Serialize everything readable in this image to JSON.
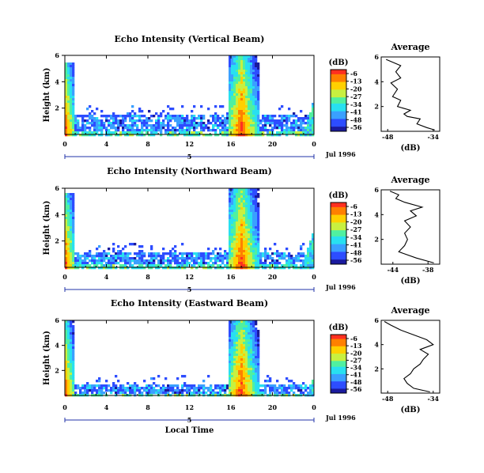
{
  "figure": {
    "xlabel": "Local Time",
    "date_label": "Jul 1996",
    "colorbar_unit": "(dB)",
    "colorbar_ticks": [
      "-6",
      "-13",
      "-20",
      "-27",
      "-34",
      "-41",
      "-48",
      "-56"
    ],
    "avg_xlabel": "(dB)"
  },
  "chart_data": [
    {
      "type": "heatmap",
      "title": "Echo Intensity (Vertical Beam)",
      "ylabel": "Height (km)",
      "x_ticks": [
        "0",
        "4",
        "8",
        "12",
        "16",
        "20",
        "0"
      ],
      "y_ticks": [
        "6",
        "4",
        "2"
      ],
      "day_label": "5",
      "xlim": [
        0,
        24
      ],
      "ylim": [
        0,
        6
      ],
      "value_range_db": [
        -56,
        -6
      ],
      "colorscale": [
        "#1a1a9e",
        "#2d4dff",
        "#3aa0ff",
        "#28e0f0",
        "#50f0a0",
        "#c8f040",
        "#ffd000",
        "#ff8000",
        "#ff3020"
      ],
      "features": {
        "morning_plume": {
          "start_hr": 0.0,
          "end_hr": 0.8,
          "top_km": 5.6
        },
        "afternoon_plume": {
          "start_hr": 15.6,
          "end_hr": 18.6,
          "top_km": 6.0
        },
        "boundary_layer_top_km": 1.5,
        "boundary_layer_span_hr": [
          0.8,
          23.8
        ],
        "late_night_rise": {
          "start_hr": 22.8,
          "end_hr": 24.0,
          "top_km": 3.0
        }
      }
    },
    {
      "type": "heatmap",
      "title": "Echo Intensity (Northward Beam)",
      "ylabel": "Height (km)",
      "x_ticks": [
        "0",
        "4",
        "8",
        "12",
        "16",
        "20",
        "0"
      ],
      "y_ticks": [
        "6",
        "4",
        "2"
      ],
      "day_label": "5",
      "xlim": [
        0,
        24
      ],
      "ylim": [
        0,
        6
      ],
      "value_range_db": [
        -56,
        -6
      ],
      "colorscale": [
        "#1a1a9e",
        "#2d4dff",
        "#3aa0ff",
        "#28e0f0",
        "#50f0a0",
        "#c8f040",
        "#ffd000",
        "#ff8000",
        "#ff3020"
      ],
      "features": {
        "morning_plume": {
          "start_hr": 0.0,
          "end_hr": 0.8,
          "top_km": 5.8
        },
        "afternoon_plume": {
          "start_hr": 15.6,
          "end_hr": 18.6,
          "top_km": 6.0
        },
        "boundary_layer_top_km": 1.2,
        "boundary_layer_span_hr": [
          0.8,
          23.8
        ],
        "late_night_rise": {
          "start_hr": 22.6,
          "end_hr": 24.0,
          "top_km": 3.2
        }
      }
    },
    {
      "type": "heatmap",
      "title": "Echo Intensity (Eastward Beam)",
      "ylabel": "Height (km)",
      "x_ticks": [
        "0",
        "4",
        "8",
        "12",
        "16",
        "20",
        "0"
      ],
      "y_ticks": [
        "6",
        "4",
        "2"
      ],
      "day_label": "5",
      "xlim": [
        0,
        24
      ],
      "ylim": [
        0,
        6
      ],
      "value_range_db": [
        -56,
        -6
      ],
      "colorscale": [
        "#1a1a9e",
        "#2d4dff",
        "#3aa0ff",
        "#28e0f0",
        "#50f0a0",
        "#c8f040",
        "#ffd000",
        "#ff8000",
        "#ff3020"
      ],
      "features": {
        "morning_plume": {
          "start_hr": 0.0,
          "end_hr": 0.8,
          "top_km": 6.0
        },
        "afternoon_plume": {
          "start_hr": 15.6,
          "end_hr": 18.6,
          "top_km": 6.0
        },
        "boundary_layer_top_km": 1.0,
        "boundary_layer_span_hr": [
          0.8,
          23.8
        ],
        "late_night_rise": {
          "start_hr": 23.2,
          "end_hr": 24.0,
          "top_km": 1.8
        }
      }
    },
    {
      "type": "line",
      "title": "Average",
      "xlabel": "(dB)",
      "x_ticks": [
        "-48",
        "-34"
      ],
      "y_ticks": [
        "6",
        "4",
        "2"
      ],
      "xlim": [
        -50,
        -32
      ],
      "ylim": [
        0,
        6
      ],
      "x": [
        -33.5,
        -36,
        -39,
        -38,
        -42,
        -43,
        -41,
        -45,
        -44,
        -46.5,
        -45,
        -47,
        -44,
        -45.5,
        -44,
        -48.5
      ],
      "y": [
        0.1,
        0.3,
        0.6,
        1.0,
        1.2,
        1.4,
        1.7,
        2.0,
        2.5,
        2.8,
        3.4,
        3.9,
        4.3,
        4.8,
        5.3,
        5.8
      ]
    },
    {
      "type": "line",
      "title": "Average",
      "xlabel": "(dB)",
      "x_ticks": [
        "-44",
        "-38"
      ],
      "y_ticks": [
        "6",
        "4",
        "2"
      ],
      "xlim": [
        -46,
        -36
      ],
      "ylim": [
        0,
        6
      ],
      "x": [
        -37.0,
        -40,
        -43,
        -42,
        -41.5,
        -42,
        -41,
        -42,
        -40,
        -41,
        -39,
        -42,
        -43.5,
        -43,
        -44.5
      ],
      "y": [
        0.1,
        0.5,
        1.0,
        1.5,
        2.0,
        2.5,
        3.0,
        3.5,
        3.9,
        4.3,
        4.6,
        5.0,
        5.3,
        5.6,
        5.9
      ]
    },
    {
      "type": "line",
      "title": "Average",
      "xlabel": "(dB)",
      "x_ticks": [
        "-48",
        "-34"
      ],
      "y_ticks": [
        "6",
        "4",
        "2"
      ],
      "xlim": [
        -50,
        -32
      ],
      "ylim": [
        0,
        6
      ],
      "x": [
        -35,
        -40,
        -42,
        -43,
        -41,
        -40,
        -38,
        -37,
        -35.5,
        -38,
        -34,
        -36,
        -40,
        -44,
        -47,
        -49
      ],
      "y": [
        0.1,
        0.4,
        0.8,
        1.2,
        1.6,
        2.0,
        2.4,
        2.8,
        3.2,
        3.6,
        4.0,
        4.4,
        4.8,
        5.2,
        5.6,
        5.9
      ]
    }
  ]
}
